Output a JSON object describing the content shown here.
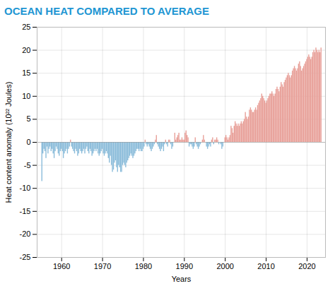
{
  "chart_data": {
    "type": "bar",
    "title": "OCEAN HEAT COMPARED TO AVERAGE",
    "xlabel": "Years",
    "ylabel": "Heat content anomaly (10²² Joules)",
    "xlim": [
      1954.0,
      2024.5
    ],
    "xticks": [
      1960,
      1970,
      1980,
      1990,
      2000,
      2010,
      2020
    ],
    "ylim": [
      -25,
      25
    ],
    "yticks": [
      -25,
      -20,
      -15,
      -10,
      -5,
      0,
      5,
      10,
      15,
      20,
      25
    ],
    "grid": true,
    "x": [
      1955.25,
      1955.5,
      1955.75,
      1956.0,
      1956.25,
      1956.5,
      1956.75,
      1957.0,
      1957.25,
      1957.5,
      1957.75,
      1958.0,
      1958.25,
      1958.5,
      1958.75,
      1959.0,
      1959.25,
      1959.5,
      1959.75,
      1960.0,
      1960.25,
      1960.5,
      1960.75,
      1961.0,
      1961.25,
      1961.5,
      1961.75,
      1962.0,
      1962.25,
      1962.5,
      1962.75,
      1963.0,
      1963.25,
      1963.5,
      1963.75,
      1964.0,
      1964.25,
      1964.5,
      1964.75,
      1965.0,
      1965.25,
      1965.5,
      1965.75,
      1966.0,
      1966.25,
      1966.5,
      1966.75,
      1967.0,
      1967.25,
      1967.5,
      1967.75,
      1968.0,
      1968.25,
      1968.5,
      1968.75,
      1969.0,
      1969.25,
      1969.5,
      1969.75,
      1970.0,
      1970.25,
      1970.5,
      1970.75,
      1971.0,
      1971.25,
      1971.5,
      1971.75,
      1972.0,
      1972.25,
      1972.5,
      1972.75,
      1973.0,
      1973.25,
      1973.5,
      1973.75,
      1974.0,
      1974.25,
      1974.5,
      1974.75,
      1975.0,
      1975.25,
      1975.5,
      1975.75,
      1976.0,
      1976.25,
      1976.5,
      1976.75,
      1977.0,
      1977.25,
      1977.5,
      1977.75,
      1978.0,
      1978.25,
      1978.5,
      1978.75,
      1979.0,
      1979.25,
      1979.5,
      1979.75,
      1980.0,
      1980.25,
      1980.5,
      1980.75,
      1981.0,
      1981.25,
      1981.5,
      1981.75,
      1982.0,
      1982.25,
      1982.5,
      1982.75,
      1983.0,
      1983.25,
      1983.5,
      1983.75,
      1984.0,
      1984.25,
      1984.5,
      1984.75,
      1985.0,
      1985.25,
      1985.5,
      1985.75,
      1986.0,
      1986.25,
      1986.5,
      1986.75,
      1987.0,
      1987.25,
      1987.5,
      1987.75,
      1988.0,
      1988.25,
      1988.5,
      1988.75,
      1989.0,
      1989.25,
      1989.5,
      1989.75,
      1990.0,
      1990.25,
      1990.5,
      1990.75,
      1991.0,
      1991.25,
      1991.5,
      1991.75,
      1992.0,
      1992.25,
      1992.5,
      1992.75,
      1993.0,
      1993.25,
      1993.5,
      1993.75,
      1994.0,
      1994.25,
      1994.5,
      1994.75,
      1995.0,
      1995.25,
      1995.5,
      1995.75,
      1996.0,
      1996.25,
      1996.5,
      1996.75,
      1997.0,
      1997.25,
      1997.5,
      1997.75,
      1998.0,
      1998.25,
      1998.5,
      1998.75,
      1999.0,
      1999.25,
      1999.5,
      1999.75,
      2000.0,
      2000.25,
      2000.5,
      2000.75,
      2001.0,
      2001.25,
      2001.5,
      2001.75,
      2002.0,
      2002.25,
      2002.5,
      2002.75,
      2003.0,
      2003.25,
      2003.5,
      2003.75,
      2004.0,
      2004.25,
      2004.5,
      2004.75,
      2005.0,
      2005.25,
      2005.5,
      2005.75,
      2006.0,
      2006.25,
      2006.5,
      2006.75,
      2007.0,
      2007.25,
      2007.5,
      2007.75,
      2008.0,
      2008.25,
      2008.5,
      2008.75,
      2009.0,
      2009.25,
      2009.5,
      2009.75,
      2010.0,
      2010.25,
      2010.5,
      2010.75,
      2011.0,
      2011.25,
      2011.5,
      2011.75,
      2012.0,
      2012.25,
      2012.5,
      2012.75,
      2013.0,
      2013.25,
      2013.5,
      2013.75,
      2014.0,
      2014.25,
      2014.5,
      2014.75,
      2015.0,
      2015.25,
      2015.5,
      2015.75,
      2016.0,
      2016.25,
      2016.5,
      2016.75,
      2017.0,
      2017.25,
      2017.5,
      2017.75,
      2018.0,
      2018.25,
      2018.5,
      2018.75,
      2019.0,
      2019.25,
      2019.5,
      2019.75,
      2020.0,
      2020.25,
      2020.5,
      2020.75,
      2021.0,
      2021.25,
      2021.5,
      2021.75,
      2022.0,
      2022.25,
      2022.5,
      2022.75,
      2023.0,
      2023.25,
      2023.5
    ],
    "values": [
      -8.5,
      -2.5,
      -1.5,
      -2.0,
      -3.5,
      -1.0,
      -2.5,
      -1.5,
      -1.0,
      -2.0,
      -1.5,
      -2.5,
      -3.5,
      -2.0,
      -1.0,
      -1.5,
      -2.5,
      -3.0,
      -2.0,
      -1.5,
      -2.0,
      -3.5,
      -2.5,
      -2.0,
      -1.5,
      -2.5,
      -1.5,
      -1.0,
      0.5,
      -1.0,
      -1.5,
      -2.0,
      -2.5,
      -1.5,
      -2.0,
      -3.0,
      -2.5,
      -1.5,
      -2.0,
      -2.5,
      -2.0,
      -1.5,
      -2.5,
      -1.5,
      -1.0,
      -2.0,
      -2.5,
      -1.5,
      -2.0,
      -3.0,
      -2.5,
      -2.0,
      -1.5,
      -2.0,
      -1.5,
      -2.5,
      -3.0,
      -2.5,
      -2.0,
      -1.5,
      -2.5,
      -3.0,
      -2.5,
      -2.0,
      -2.5,
      -3.5,
      -4.5,
      -3.0,
      -5.0,
      -6.5,
      -6.0,
      -4.5,
      -4.0,
      -5.5,
      -6.5,
      -5.0,
      -5.5,
      -6.5,
      -6.5,
      -5.0,
      -4.5,
      -5.0,
      -5.5,
      -4.5,
      -4.0,
      -3.5,
      -3.0,
      -2.5,
      -3.0,
      -3.5,
      -3.0,
      -2.5,
      -2.0,
      -1.5,
      -1.5,
      -2.0,
      -1.5,
      -2.0,
      -2.0,
      -1.5,
      -1.0,
      0.5,
      -0.5,
      -1.0,
      -0.5,
      -1.0,
      -1.5,
      -2.0,
      -1.5,
      -1.0,
      -0.5,
      0.5,
      1.5,
      -0.5,
      -1.0,
      -1.5,
      -2.0,
      -1.5,
      -1.0,
      -2.0,
      -0.5,
      0.5,
      -0.5,
      -1.0,
      0.5,
      0.5,
      -0.5,
      -1.5,
      -1.0,
      0.0,
      2.0,
      0.5,
      1.0,
      1.5,
      2.0,
      0.5,
      0.5,
      1.0,
      0.5,
      0.5,
      2.0,
      2.5,
      1.5,
      1.0,
      -1.0,
      -0.5,
      -0.5,
      -1.0,
      -1.5,
      -1.0,
      1.0,
      -0.5,
      -1.0,
      -1.5,
      -1.0,
      -0.5,
      0.0,
      0.5,
      1.5,
      0.5,
      0.0,
      -1.0,
      -1.5,
      -1.0,
      -0.5,
      -1.0,
      0.5,
      1.0,
      -0.5,
      0.5,
      0.5,
      1.0,
      0.5,
      -0.5,
      0.0,
      -0.5,
      -1.5,
      -1.0,
      0.0,
      1.0,
      1.5,
      1.0,
      0.5,
      1.0,
      1.5,
      3.5,
      3.0,
      2.0,
      3.5,
      4.5,
      4.0,
      3.5,
      4.0,
      3.5,
      4.0,
      4.5,
      4.0,
      4.5,
      5.0,
      6.5,
      5.5,
      5.0,
      5.5,
      7.0,
      7.5,
      7.0,
      6.5,
      6.5,
      7.0,
      7.5,
      7.0,
      8.0,
      8.5,
      9.0,
      9.5,
      10.5,
      10.0,
      9.5,
      9.0,
      8.5,
      9.0,
      9.5,
      10.0,
      10.5,
      10.5,
      11.0,
      10.5,
      10.0,
      10.5,
      11.5,
      12.0,
      11.5,
      11.0,
      12.0,
      13.0,
      12.5,
      12.0,
      13.0,
      13.5,
      14.0,
      14.5,
      15.0,
      14.5,
      14.0,
      14.5,
      15.5,
      16.0,
      16.5,
      16.0,
      15.5,
      16.0,
      17.0,
      17.5,
      16.5,
      15.5,
      16.0,
      16.5,
      17.0,
      17.5,
      18.0,
      18.5,
      19.0,
      18.5,
      18.0,
      18.5,
      19.5,
      20.0,
      19.5,
      20.5,
      20.0,
      19.5,
      20.0,
      19.5,
      20.5
    ],
    "colors": [
      "#8bbcda",
      "#8bbcda",
      "#8bbcda",
      "#8bbcda",
      "#8bbcda",
      "#8bbcda",
      "#8bbcda",
      "#8bbcda",
      "#8bbcda",
      "#8bbcda",
      "#8bbcda",
      "#8bbcda",
      "#8bbcda",
      "#8bbcda",
      "#8bbcda",
      "#8bbcda",
      "#8bbcda",
      "#8bbcda",
      "#8bbcda",
      "#8bbcda",
      "#8bbcda",
      "#8bbcda",
      "#8bbcda",
      "#8bbcda",
      "#8bbcda",
      "#8bbcda",
      "#8bbcda",
      "#8bbcda",
      "#e8a099",
      "#8bbcda",
      "#8bbcda",
      "#8bbcda",
      "#8bbcda",
      "#8bbcda",
      "#8bbcda",
      "#8bbcda",
      "#8bbcda",
      "#8bbcda",
      "#8bbcda",
      "#8bbcda",
      "#8bbcda",
      "#8bbcda",
      "#8bbcda",
      "#8bbcda",
      "#8bbcda",
      "#8bbcda",
      "#8bbcda",
      "#8bbcda",
      "#8bbcda",
      "#8bbcda",
      "#8bbcda",
      "#8bbcda",
      "#8bbcda",
      "#8bbcda",
      "#8bbcda",
      "#8bbcda",
      "#8bbcda",
      "#8bbcda",
      "#8bbcda",
      "#8bbcda",
      "#8bbcda",
      "#8bbcda",
      "#8bbcda",
      "#8bbcda",
      "#8bbcda",
      "#8bbcda",
      "#8bbcda",
      "#8bbcda",
      "#8bbcda",
      "#8bbcda",
      "#8bbcda",
      "#8bbcda",
      "#8bbcda",
      "#8bbcda",
      "#8bbcda",
      "#8bbcda",
      "#8bbcda",
      "#8bbcda",
      "#8bbcda",
      "#8bbcda",
      "#8bbcda",
      "#8bbcda",
      "#8bbcda",
      "#8bbcda",
      "#8bbcda",
      "#8bbcda",
      "#8bbcda",
      "#8bbcda",
      "#8bbcda",
      "#8bbcda",
      "#8bbcda",
      "#8bbcda",
      "#8bbcda",
      "#8bbcda",
      "#8bbcda",
      "#8bbcda",
      "#8bbcda",
      "#8bbcda",
      "#8bbcda",
      "#8bbcda",
      "#8bbcda",
      "#e8a099",
      "#8bbcda",
      "#8bbcda",
      "#8bbcda",
      "#8bbcda",
      "#8bbcda",
      "#8bbcda",
      "#8bbcda",
      "#8bbcda",
      "#8bbcda",
      "#e8a099",
      "#e8a099",
      "#8bbcda",
      "#8bbcda",
      "#8bbcda",
      "#8bbcda",
      "#8bbcda",
      "#8bbcda",
      "#8bbcda",
      "#8bbcda",
      "#e8a099",
      "#8bbcda",
      "#8bbcda",
      "#e8a099",
      "#e8a099",
      "#8bbcda",
      "#8bbcda",
      "#8bbcda",
      "#e8a099",
      "#e8a099",
      "#e8a099",
      "#e8a099",
      "#e8a099",
      "#e8a099",
      "#e8a099",
      "#e8a099",
      "#e8a099",
      "#e8a099",
      "#e8a099",
      "#e8a099",
      "#e8a099",
      "#e8a099",
      "#e8a099",
      "#8bbcda",
      "#8bbcda",
      "#8bbcda",
      "#8bbcda",
      "#8bbcda",
      "#8bbcda",
      "#e8a099",
      "#8bbcda",
      "#8bbcda",
      "#8bbcda",
      "#8bbcda",
      "#8bbcda",
      "#e8a099",
      "#e8a099",
      "#e8a099",
      "#e8a099",
      "#e8a099",
      "#8bbcda",
      "#8bbcda",
      "#8bbcda",
      "#8bbcda",
      "#8bbcda",
      "#e8a099",
      "#e8a099",
      "#8bbcda",
      "#e8a099",
      "#e8a099",
      "#e8a099",
      "#e8a099",
      "#8bbcda",
      "#e8a099",
      "#8bbcda",
      "#8bbcda",
      "#8bbcda",
      "#e8a099",
      "#e8a099",
      "#e8a099",
      "#e8a099",
      "#e8a099",
      "#e8a099",
      "#e8a099",
      "#e8a099",
      "#e8a099",
      "#e8a099",
      "#e8a099",
      "#e8a099",
      "#e8a099",
      "#e8a099",
      "#e8a099",
      "#e8a099",
      "#e8a099",
      "#e8a099",
      "#e8a099",
      "#e8a099",
      "#e8a099",
      "#e8a099",
      "#e8a099",
      "#e8a099",
      "#e8a099",
      "#e8a099",
      "#e8a099",
      "#e8a099",
      "#e8a099",
      "#e8a099",
      "#e8a099",
      "#e8a099",
      "#e8a099",
      "#e8a099",
      "#e8a099",
      "#e8a099",
      "#e8a099",
      "#e8a099",
      "#e8a099",
      "#e8a099",
      "#e8a099",
      "#e8a099",
      "#e8a099",
      "#e8a099",
      "#e8a099",
      "#e8a099",
      "#e8a099",
      "#e8a099",
      "#e8a099",
      "#e8a099",
      "#e8a099",
      "#e8a099",
      "#e8a099",
      "#e8a099",
      "#e8a099",
      "#e8a099",
      "#e8a099",
      "#e8a099",
      "#e8a099",
      "#e8a099",
      "#e8a099",
      "#e8a099",
      "#e8a099",
      "#e8a099",
      "#e8a099",
      "#e8a099",
      "#e8a099",
      "#e8a099",
      "#e8a099",
      "#e8a099",
      "#e8a099",
      "#e8a099",
      "#e8a099",
      "#e8a099",
      "#e8a099",
      "#e8a099",
      "#e8a099",
      "#e8a099",
      "#e8a099",
      "#e8a099",
      "#e8a099",
      "#e8a099",
      "#e8a099",
      "#e8a099",
      "#e8a099",
      "#e8a099",
      "#e8a099",
      "#e8a099",
      "#e8a099",
      "#e8a099",
      "#e8a099",
      "#e8a099",
      "#e8a099",
      "#e8a099",
      "#e8a099",
      "#e8a099"
    ]
  }
}
